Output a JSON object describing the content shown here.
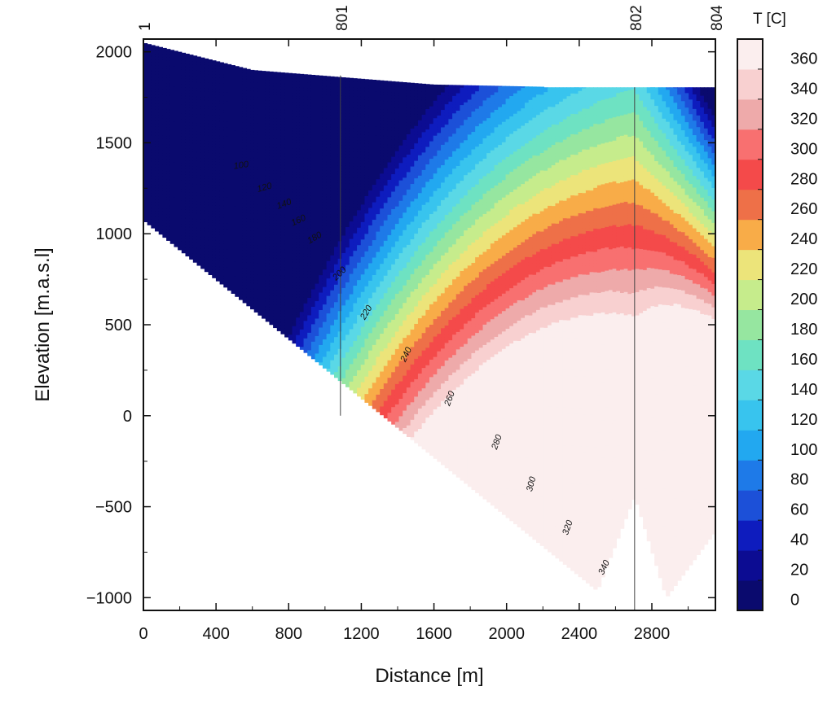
{
  "chart_data": {
    "type": "contour",
    "xlabel": "Distance [m]",
    "ylabel": "Elevation [m.a.s.l]",
    "xlim": [
      0,
      3150
    ],
    "ylim": [
      -1070,
      2070
    ],
    "x_ticks": [
      "0",
      "400",
      "800",
      "1200",
      "1600",
      "2000",
      "2400",
      "2800"
    ],
    "x_tick_values": [
      0,
      400,
      800,
      1200,
      1600,
      2000,
      2400,
      2800
    ],
    "y_ticks": [
      "2000",
      "1500",
      "1000",
      "500",
      "0",
      "−500",
      "−1000"
    ],
    "y_tick_values": [
      2000,
      1500,
      1000,
      500,
      0,
      -500,
      -1000
    ],
    "colorbar": {
      "title": "T [C]",
      "ticks": [
        "0",
        "20",
        "40",
        "60",
        "80",
        "100",
        "120",
        "140",
        "160",
        "180",
        "200",
        "220",
        "240",
        "260",
        "280",
        "300",
        "320",
        "340",
        "360"
      ],
      "levels": [
        0,
        20,
        40,
        60,
        80,
        100,
        120,
        140,
        160,
        180,
        200,
        220,
        240,
        260,
        280,
        300,
        320,
        340,
        360
      ],
      "colors": [
        "#0a0a6e",
        "#0c0c92",
        "#0e1cbe",
        "#1c50d8",
        "#1e7ae8",
        "#22a8f0",
        "#38c4ee",
        "#5ad8e6",
        "#6ee2c2",
        "#96e6a0",
        "#c6ec8c",
        "#ece47a",
        "#f8ac48",
        "#ee7048",
        "#f44a4a",
        "#f87070",
        "#eeaaaa",
        "#f8d0d0",
        "#fbeeee"
      ]
    },
    "wells": [
      {
        "name": "1",
        "x": 0
      },
      {
        "name": "801",
        "x": 1085
      },
      {
        "name": "802",
        "x": 2705
      },
      {
        "name": "804",
        "x": 3150
      }
    ],
    "contour_labels": [
      "100",
      "120",
      "140",
      "160",
      "180",
      "200",
      "220",
      "240",
      "260",
      "280",
      "300",
      "320",
      "340"
    ],
    "description_hidden": false
  }
}
